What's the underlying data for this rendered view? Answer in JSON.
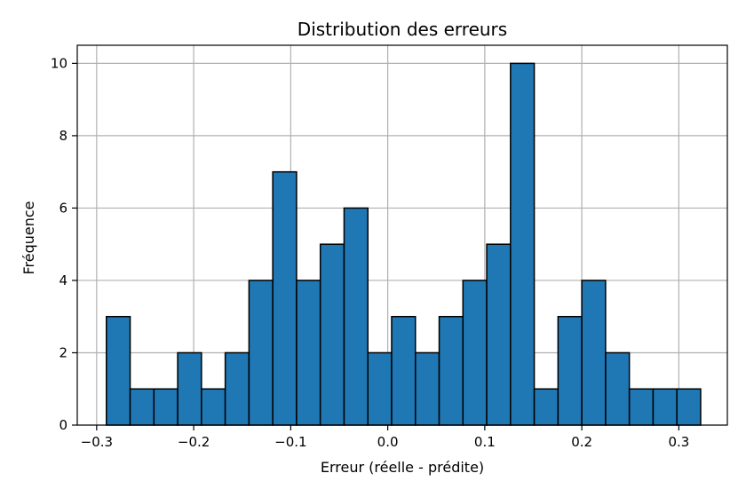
{
  "chart_data": {
    "type": "bar",
    "title": "Distribution des erreurs",
    "xlabel": "Erreur (réelle - prédite)",
    "ylabel": "Fréquence",
    "bin_start": -0.29,
    "bin_width": 0.0245,
    "values": [
      3,
      1,
      1,
      2,
      1,
      2,
      4,
      7,
      4,
      5,
      6,
      2,
      3,
      2,
      3,
      4,
      5,
      10,
      1,
      3,
      4,
      2,
      1,
      1,
      1
    ],
    "xlim": [
      -0.32,
      0.35
    ],
    "ylim": [
      0,
      10.5
    ],
    "xticks": [
      {
        "value": -0.3,
        "label": "−0.3"
      },
      {
        "value": -0.2,
        "label": "−0.2"
      },
      {
        "value": -0.1,
        "label": "−0.1"
      },
      {
        "value": 0.0,
        "label": "0.0"
      },
      {
        "value": 0.1,
        "label": "0.1"
      },
      {
        "value": 0.2,
        "label": "0.2"
      },
      {
        "value": 0.3,
        "label": "0.3"
      }
    ],
    "yticks": [
      {
        "value": 0,
        "label": "0"
      },
      {
        "value": 2,
        "label": "2"
      },
      {
        "value": 4,
        "label": "4"
      },
      {
        "value": 6,
        "label": "6"
      },
      {
        "value": 8,
        "label": "8"
      },
      {
        "value": 10,
        "label": "10"
      }
    ],
    "bar_color": "#1f77b4",
    "edge_color": "#000000",
    "grid": true
  }
}
